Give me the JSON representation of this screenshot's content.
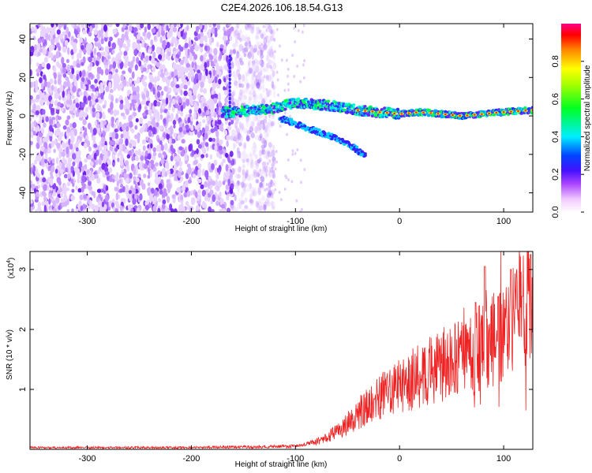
{
  "title": "C2E4.2026.106.18.54.G13",
  "chart_data": [
    {
      "type": "heatmap",
      "name": "spectrogram",
      "xlabel": "Height of straight line (km)",
      "ylabel": "Frequency (Hz)",
      "xlim": [
        -355,
        128
      ],
      "ylim": [
        -50,
        48
      ],
      "xticks": [
        -300,
        -200,
        -100,
        0,
        100
      ],
      "yticks": [
        -40,
        -20,
        0,
        20,
        40
      ],
      "noise_region_x": [
        -355,
        -135
      ],
      "signal_band": [
        {
          "x": -160,
          "f": 2
        },
        {
          "x": -140,
          "f": 3
        },
        {
          "x": -120,
          "f": 4
        },
        {
          "x": -100,
          "f": 7
        },
        {
          "x": -80,
          "f": 6
        },
        {
          "x": -60,
          "f": 5
        },
        {
          "x": -40,
          "f": 3
        },
        {
          "x": -20,
          "f": 2
        },
        {
          "x": 0,
          "f": 1
        },
        {
          "x": 20,
          "f": 2
        },
        {
          "x": 40,
          "f": 1
        },
        {
          "x": 60,
          "f": 0
        },
        {
          "x": 80,
          "f": 1
        },
        {
          "x": 100,
          "f": 2
        },
        {
          "x": 128,
          "f": 3
        }
      ],
      "drift_branch": [
        {
          "x": -110,
          "f": -2
        },
        {
          "x": -90,
          "f": -6
        },
        {
          "x": -70,
          "f": -10
        },
        {
          "x": -50,
          "f": -14
        },
        {
          "x": -35,
          "f": -20
        }
      ],
      "colorbar": {
        "label": "Normalized spectral amplitude",
        "ticks": [
          0.0,
          0.2,
          0.4,
          0.6,
          0.8
        ],
        "tick_labels": [
          "0.0",
          "0.2",
          "0.4",
          "0.6",
          "0.8"
        ],
        "range": [
          0,
          1
        ]
      },
      "colors": [
        "#ffffff",
        "#cc88ff",
        "#7722ee",
        "#2222ff",
        "#00ddff",
        "#00ff44",
        "#ffff00",
        "#ff8800",
        "#ff0000",
        "#ff00aa"
      ]
    },
    {
      "type": "line",
      "name": "snr",
      "xlabel": "Height of straight line (km)",
      "ylabel": "SNR (10 * v/v)",
      "ylabel_exponent": "(x10",
      "ylabel_exponent_power": "4",
      "ylabel_exponent_close": ")",
      "xlim": [
        -355,
        128
      ],
      "ylim": [
        0,
        3.3
      ],
      "xticks": [
        -300,
        -200,
        -100,
        0,
        100
      ],
      "yticks": [
        1,
        2,
        3
      ],
      "envelope": [
        {
          "x": -355,
          "v": 0.03
        },
        {
          "x": -200,
          "v": 0.03
        },
        {
          "x": -100,
          "v": 0.05
        },
        {
          "x": -75,
          "v": 0.15
        },
        {
          "x": -55,
          "v": 0.35
        },
        {
          "x": -40,
          "v": 0.6
        },
        {
          "x": -20,
          "v": 0.85
        },
        {
          "x": 0,
          "v": 1.05
        },
        {
          "x": 20,
          "v": 1.25
        },
        {
          "x": 40,
          "v": 1.4
        },
        {
          "x": 60,
          "v": 1.5
        },
        {
          "x": 80,
          "v": 1.7
        },
        {
          "x": 100,
          "v": 1.9
        },
        {
          "x": 115,
          "v": 2.3
        },
        {
          "x": 128,
          "v": 2.8
        }
      ],
      "peaks": [
        {
          "x": 82,
          "v": 3.05
        },
        {
          "x": 107,
          "v": 3.0
        },
        {
          "x": 118,
          "v": 2.55
        },
        {
          "x": 126,
          "v": 3.25
        },
        {
          "x": 95,
          "v": 2.55
        },
        {
          "x": 73,
          "v": 2.45
        }
      ],
      "color": "#ee2222"
    }
  ]
}
